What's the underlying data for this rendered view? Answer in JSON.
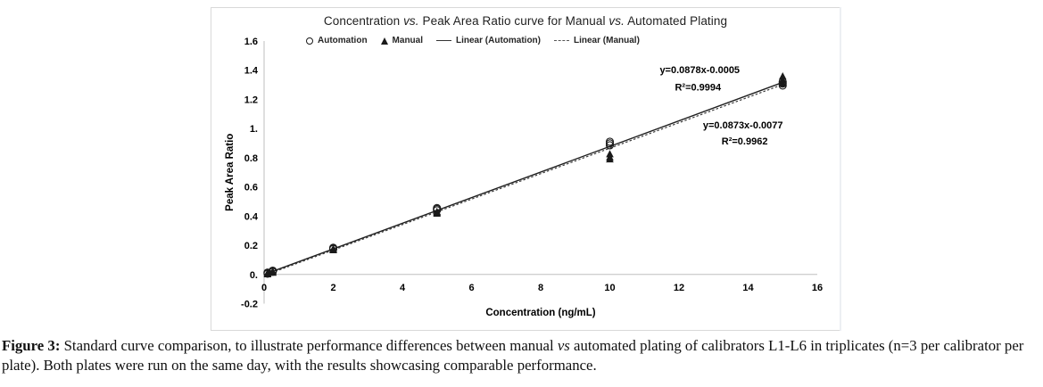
{
  "chart": {
    "title_parts": [
      "Concentration ",
      "vs.",
      " Peak Area Ratio curve for Manual ",
      "vs.",
      " Automated Plating"
    ],
    "legend": [
      {
        "label": "Automation",
        "marker": "circle-open"
      },
      {
        "label": "Manual",
        "marker": "triangle-filled"
      },
      {
        "label": "Linear (Automation)",
        "marker": "line-solid"
      },
      {
        "label": "Linear (Manual)",
        "marker": "line-dashed"
      }
    ]
  },
  "chart_data": {
    "type": "scatter",
    "title": "Concentration vs. Peak Area Ratio curve for Manual vs. Automated Plating",
    "xlabel": "Concentration (ng/mL)",
    "ylabel": "Peak Area Ratio",
    "xlim": [
      0,
      16
    ],
    "ylim": [
      -0.2,
      1.6
    ],
    "xticks": [
      0,
      2,
      4,
      6,
      8,
      10,
      12,
      14,
      16
    ],
    "ytick_labels": [
      "1.6",
      "1.4",
      "1.2",
      "1.",
      "0.8",
      "0.6",
      "0.4",
      "0.2",
      "0.",
      "-0.2"
    ],
    "grid": false,
    "legend_position": "top-center",
    "series": [
      {
        "name": "Automation",
        "kind": "scatter",
        "marker": "circle-open",
        "points": [
          [
            0.1,
            0.005
          ],
          [
            0.1,
            0.01
          ],
          [
            0.1,
            0.013
          ],
          [
            0.25,
            0.018
          ],
          [
            0.25,
            0.022
          ],
          [
            0.25,
            0.026
          ],
          [
            2,
            0.175
          ],
          [
            2,
            0.179
          ],
          [
            2,
            0.183
          ],
          [
            5,
            0.44
          ],
          [
            5,
            0.448
          ],
          [
            5,
            0.455
          ],
          [
            10,
            0.885
          ],
          [
            10,
            0.898
          ],
          [
            10,
            0.91
          ],
          [
            15,
            1.295
          ],
          [
            15,
            1.308
          ],
          [
            15,
            1.32
          ]
        ]
      },
      {
        "name": "Manual",
        "kind": "scatter",
        "marker": "triangle-filled",
        "points": [
          [
            0.1,
            0.002
          ],
          [
            0.1,
            0.006
          ],
          [
            0.1,
            0.01
          ],
          [
            0.25,
            0.013
          ],
          [
            0.25,
            0.017
          ],
          [
            0.25,
            0.021
          ],
          [
            2,
            0.167
          ],
          [
            2,
            0.171
          ],
          [
            2,
            0.176
          ],
          [
            5,
            0.418
          ],
          [
            5,
            0.424
          ],
          [
            5,
            0.43
          ],
          [
            10,
            0.79
          ],
          [
            10,
            0.803
          ],
          [
            10,
            0.825
          ],
          [
            15,
            1.308
          ],
          [
            15,
            1.333
          ],
          [
            15,
            1.358
          ]
        ]
      },
      {
        "name": "Linear (Automation)",
        "kind": "line",
        "style": "solid",
        "slope": 0.0878,
        "intercept": -0.0005,
        "x_range": [
          0.1,
          15.1
        ],
        "equation": "y=0.0878x-0.0005",
        "r2": "R²=0.9994"
      },
      {
        "name": "Linear (Manual)",
        "kind": "line",
        "style": "dashed",
        "slope": 0.0873,
        "intercept": -0.0077,
        "x_range": [
          0.1,
          15.1
        ],
        "equation": "y=0.0873x-0.0077",
        "r2": "R²=0.9962"
      }
    ],
    "annotations": [
      {
        "text": "y=0.0878x-0.0005",
        "x": 12.6,
        "y": 1.38
      },
      {
        "text": "R²=0.9994",
        "x": 12.55,
        "y": 1.26
      },
      {
        "text": "y=0.0873x-0.0077",
        "x": 13.85,
        "y": 1.0
      },
      {
        "text": "R²=0.9962",
        "x": 13.9,
        "y": 0.89
      }
    ],
    "colors": {
      "marker": "#1a1a1a",
      "line_solid": "#1f1f1f",
      "line_dashed": "#3d3d3d",
      "axis": "#bfbfbf",
      "text": "#000000"
    }
  },
  "caption": {
    "label": "Figure 3:",
    "part1": " Standard curve comparison, to illustrate performance differences between manual ",
    "vs": "vs",
    "part2": " automated plating of calibrators L1-L6 in triplicates (n=3 per calibrator per plate). Both plates were run on the same day, with the results showcasing comparable performance."
  }
}
